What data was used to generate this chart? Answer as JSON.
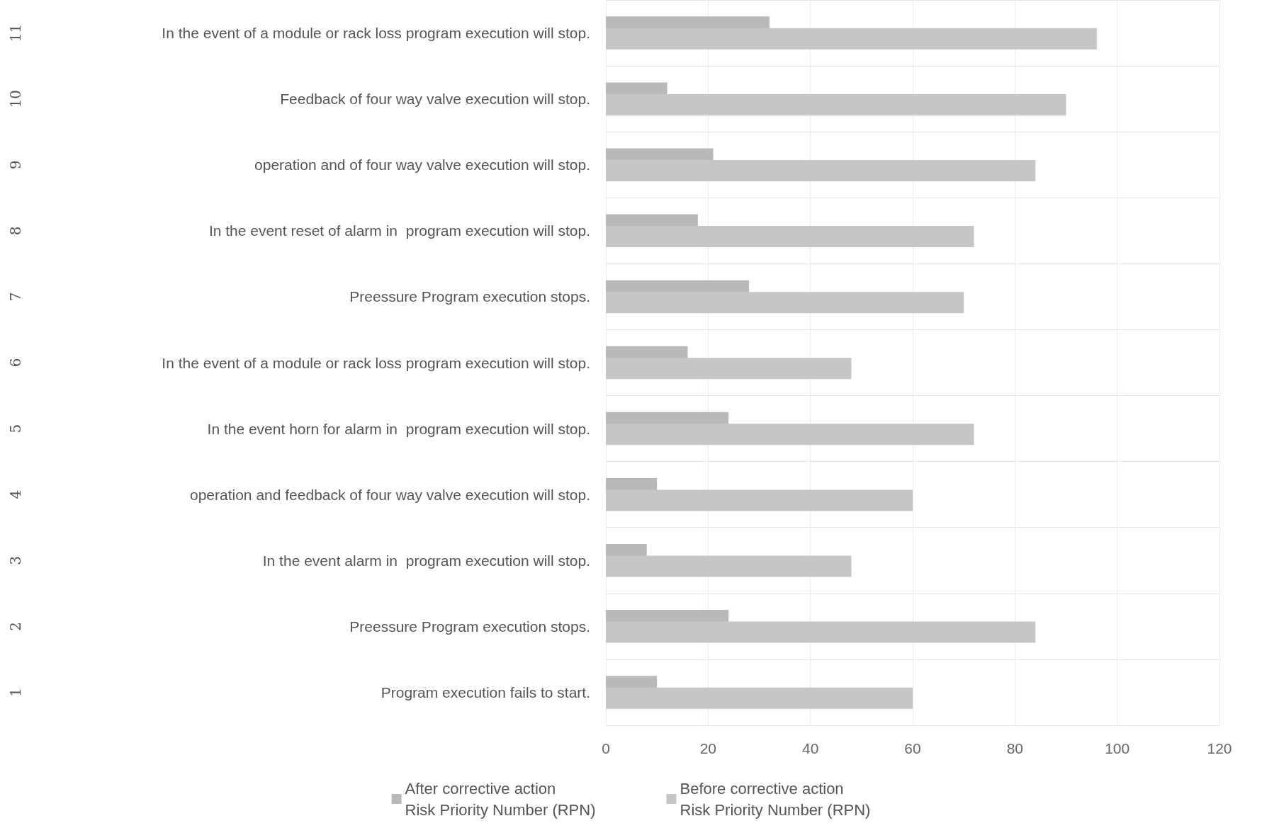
{
  "chart_data": {
    "type": "bar",
    "orientation": "horizontal",
    "categories": [
      "In the event of a module or rack loss program execution will stop.",
      "Feedback of four way valve execution will stop.",
      "operation and of four way valve execution will stop.",
      "In the event reset of alarm in  program execution will stop.",
      "Preessure Program execution stops.",
      "In the event of a module or rack loss program execution will stop.",
      "In the event horn for alarm in  program execution will stop.",
      "operation and feedback of four way valve execution will stop.",
      "In the event alarm in  program execution will stop.",
      "Preessure Program execution stops.",
      "Program execution fails to start."
    ],
    "annotations": [
      "11",
      "10",
      "9",
      "8",
      "7",
      "6",
      "5",
      "4",
      "3",
      "2",
      "1"
    ],
    "series": [
      {
        "name": "After corrective action\nRisk Priority Number (RPN)",
        "color": "#b9b9b9",
        "values": [
          32,
          12,
          21,
          18,
          28,
          16,
          24,
          10,
          8,
          24,
          10
        ]
      },
      {
        "name": "Before corrective action\nRisk Priority Number (RPN)",
        "color": "#c6c6c6",
        "values": [
          96,
          90,
          84,
          72,
          70,
          48,
          72,
          60,
          48,
          84,
          60
        ]
      }
    ],
    "xlim": [
      0,
      120
    ],
    "xticks": [
      0,
      20,
      40,
      60,
      80,
      100,
      120
    ],
    "grid": true,
    "legend": "bottom"
  }
}
